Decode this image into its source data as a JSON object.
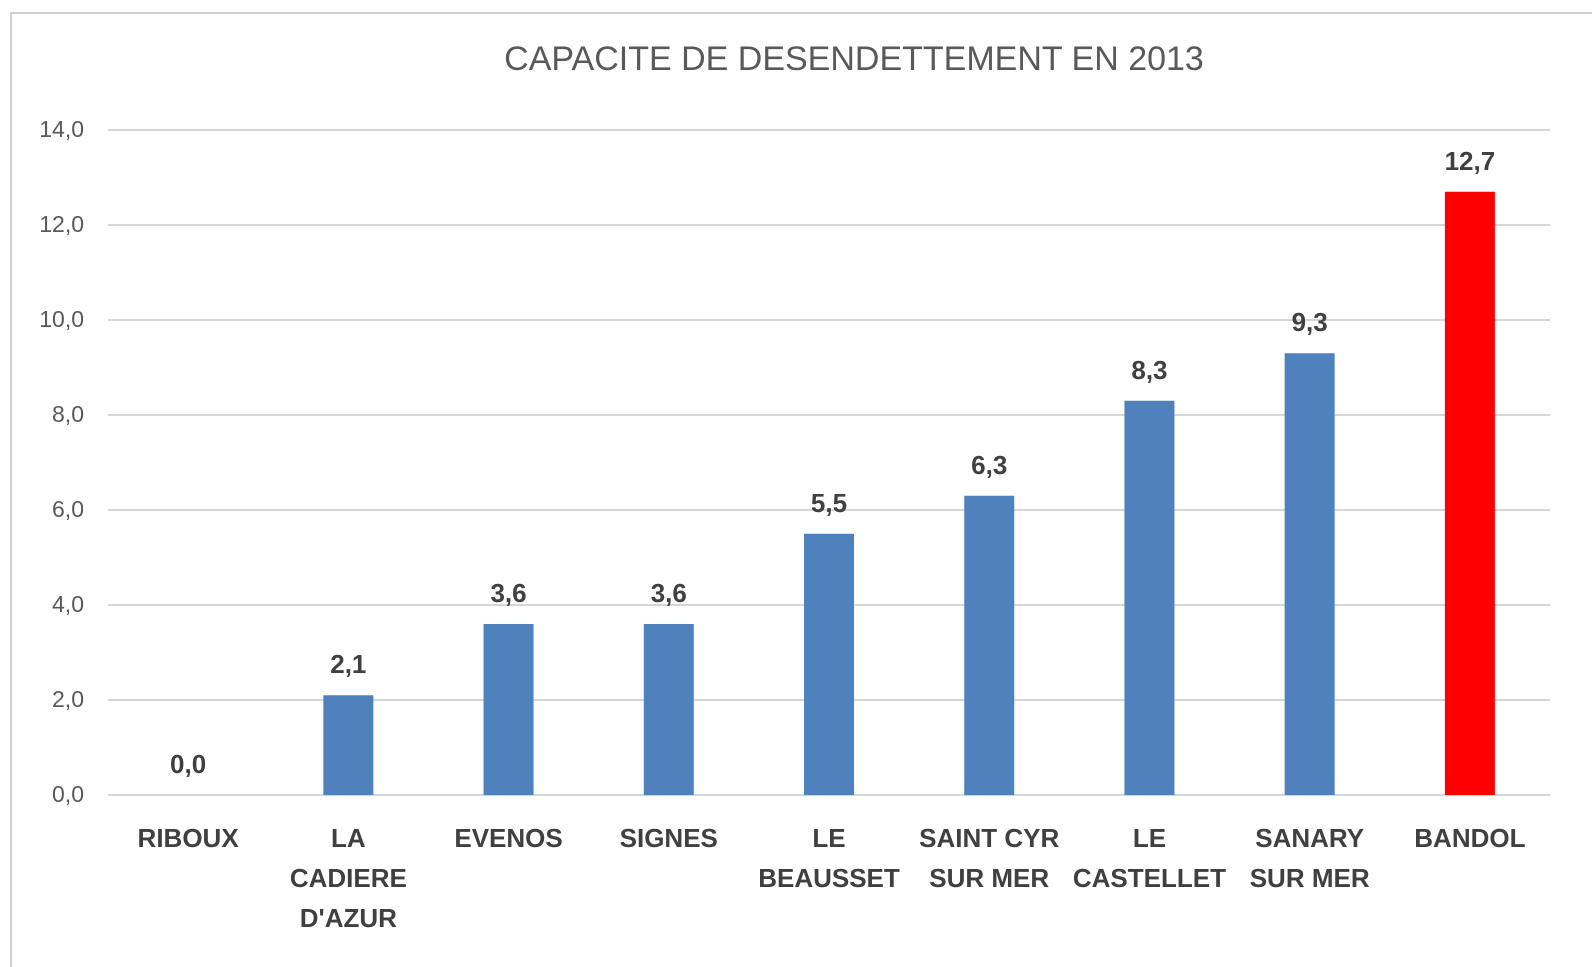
{
  "chart_data": {
    "type": "bar",
    "title": "CAPACITE DE DESENDETTEMENT  EN 2013",
    "categories": [
      "RIBOUX",
      "LA\nCADIERE\nD'AZUR",
      "EVENOS",
      "SIGNES",
      "LE\nBEAUSSET",
      "SAINT CYR\nSUR MER",
      "LE\nCASTELLET",
      "SANARY\nSUR MER",
      "BANDOL"
    ],
    "values": [
      0.0,
      2.1,
      3.6,
      3.6,
      5.5,
      6.3,
      8.3,
      9.3,
      12.7
    ],
    "value_labels": [
      "0,0",
      "2,1",
      "3,6",
      "3,6",
      "5,5",
      "6,3",
      "8,3",
      "9,3",
      "12,7"
    ],
    "colors": [
      "#4f81bd",
      "#4f81bd",
      "#4f81bd",
      "#4f81bd",
      "#4f81bd",
      "#4f81bd",
      "#4f81bd",
      "#4f81bd",
      "#ff0000"
    ],
    "ylim": [
      0,
      14
    ],
    "yticks": [
      {
        "value": 0,
        "label": "0,0"
      },
      {
        "value": 2,
        "label": "2,0"
      },
      {
        "value": 4,
        "label": "4,0"
      },
      {
        "value": 6,
        "label": "6,0"
      },
      {
        "value": 8,
        "label": "8,0"
      },
      {
        "value": 10,
        "label": "10,0"
      },
      {
        "value": 12,
        "label": "12,0"
      },
      {
        "value": 14,
        "label": "14,0"
      }
    ],
    "grid": true
  }
}
